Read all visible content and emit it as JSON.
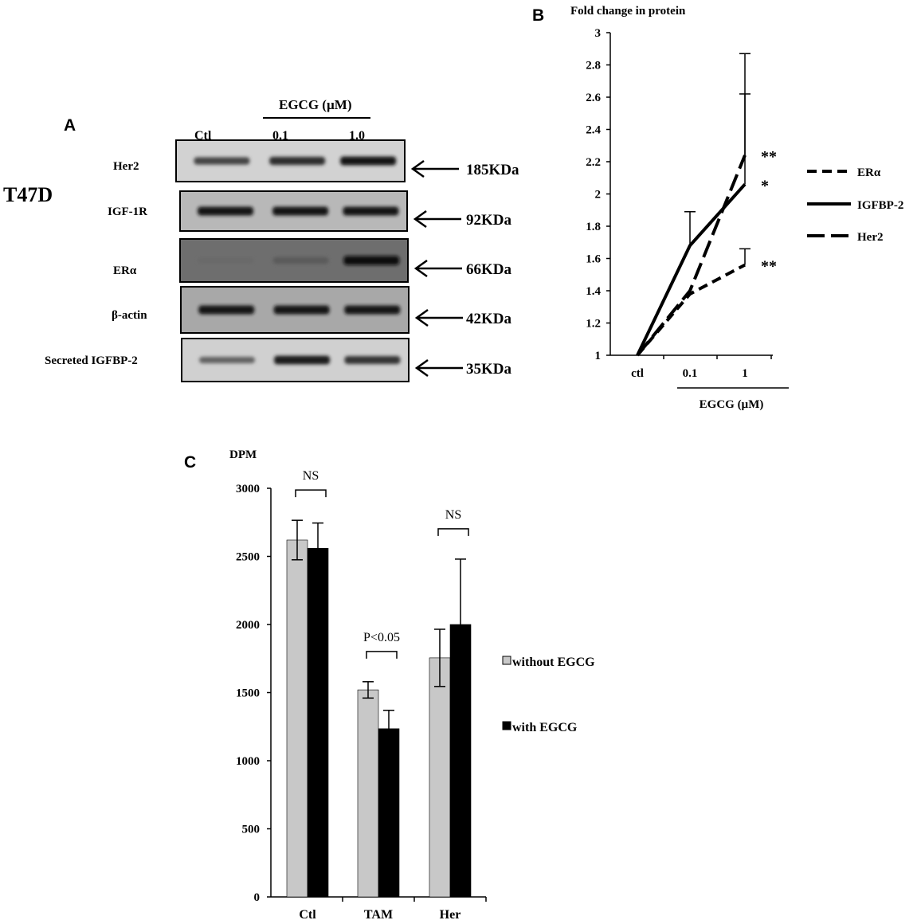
{
  "panel_labels": {
    "a": "A",
    "b": "B",
    "c": "C"
  },
  "panel_a": {
    "cell_line": "T47D",
    "treatment_label": "EGCG (µM)",
    "lanes": [
      "Ctl",
      "0.1",
      "1.0"
    ],
    "blots": [
      {
        "protein": "Her2",
        "size": "185KDa",
        "bands": [
          0.55,
          0.7,
          0.85
        ]
      },
      {
        "protein": "IGF-1R",
        "size": "92KDa",
        "bands": [
          0.85,
          0.85,
          0.85
        ]
      },
      {
        "protein": "ERα",
        "size": "66KDa",
        "bands": [
          0.3,
          0.4,
          0.9
        ]
      },
      {
        "protein": "β-actin",
        "size": "42KDa",
        "bands": [
          0.85,
          0.85,
          0.85
        ]
      },
      {
        "protein": "Secreted IGFBP-2",
        "size": "35KDa",
        "bands": [
          0.35,
          0.8,
          0.65
        ]
      }
    ]
  },
  "chart_data": [
    {
      "type": "line",
      "panel": "B",
      "title": "Fold change in protein",
      "categories": [
        "ctl",
        "0.1",
        "1"
      ],
      "xlabel": "EGCG (µM)",
      "ylim": [
        1,
        3
      ],
      "yticks": [
        "1",
        "1.2",
        "1.4",
        "1.6",
        "1.8",
        "2",
        "2.2",
        "2.4",
        "2.6",
        "2.8",
        "3"
      ],
      "series": [
        {
          "name": "ERα",
          "style": "dashed",
          "values": [
            1.0,
            1.38,
            1.56
          ],
          "errors": [
            null,
            null,
            0.1
          ],
          "signif": "**"
        },
        {
          "name": "IGFBP-2",
          "style": "solid",
          "values": [
            1.0,
            1.68,
            2.06
          ],
          "errors": [
            null,
            0.21,
            0.56
          ],
          "signif": "*"
        },
        {
          "name": "Her2",
          "style": "dashdot",
          "values": [
            1.0,
            1.4,
            2.24
          ],
          "errors": [
            null,
            null,
            0.63
          ],
          "signif": "**"
        }
      ]
    },
    {
      "type": "bar",
      "panel": "C",
      "ylabel": "DPM",
      "categories": [
        "Ctl",
        "TAM",
        "Her"
      ],
      "ylim": [
        0,
        3000
      ],
      "yticks": [
        "0",
        "500",
        "1000",
        "1500",
        "2000",
        "2500",
        "3000"
      ],
      "series": [
        {
          "name": "without EGCG",
          "color": "#c8c8c8",
          "values": [
            2620,
            1520,
            1755
          ],
          "errors": [
            145,
            60,
            210
          ]
        },
        {
          "name": "with EGCG",
          "color": "#000000",
          "values": [
            2560,
            1235,
            2000
          ],
          "errors": [
            185,
            135,
            480
          ]
        }
      ],
      "comparisons": [
        "NS",
        "P<0.05",
        "NS"
      ]
    }
  ]
}
